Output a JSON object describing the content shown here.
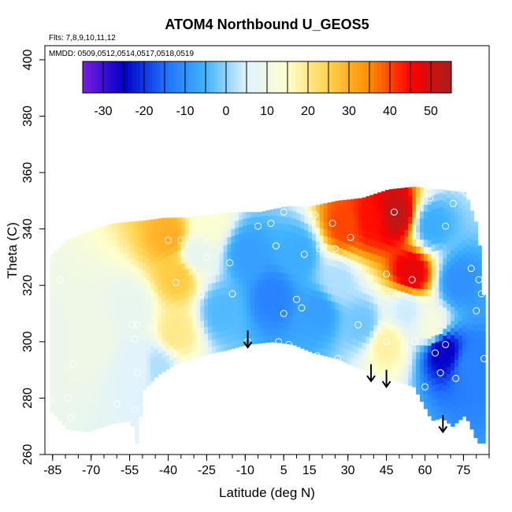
{
  "chart_data": {
    "type": "heatmap",
    "title": "ATOM4 Northbound U_GEOS5",
    "subtitle": "Flts: 7,8,9,10,11,12",
    "annotation": "MMDD: 0509,0512,0514,0517,0518,0519",
    "xlabel": "Latitude (deg N)",
    "ylabel": "Theta (C)",
    "xlim": [
      -88,
      85
    ],
    "ylim": [
      260,
      405
    ],
    "x_ticks": [
      -85,
      -70,
      -55,
      -40,
      -25,
      -10,
      5,
      15,
      30,
      45,
      60,
      75
    ],
    "x_tick_labels": [
      "-85",
      "-70",
      "-55",
      "-40",
      "-25",
      "-10",
      "5",
      "15",
      "30",
      "45",
      "60",
      "75"
    ],
    "y_ticks": [
      260,
      280,
      300,
      320,
      340,
      360,
      380,
      400
    ],
    "y_tick_labels": [
      "260",
      "280",
      "300",
      "320",
      "340",
      "360",
      "380",
      "400"
    ],
    "colorbar": {
      "range": [
        -35,
        55
      ],
      "ticks": [
        -30,
        -20,
        -10,
        0,
        10,
        20,
        30,
        40,
        50
      ],
      "tick_labels": [
        "-30",
        "-20",
        "-10",
        "0",
        "10",
        "20",
        "30",
        "40",
        "50"
      ],
      "colors": [
        "#7a1fe0",
        "#0000c8",
        "#1e6eff",
        "#41b4ff",
        "#dff2ff",
        "#ffffcc",
        "#ffd24a",
        "#ff8c00",
        "#ff0000",
        "#a81e1e"
      ]
    },
    "valid_region": {
      "top": [
        [
          -86,
          331
        ],
        [
          -80,
          336
        ],
        [
          -72,
          339
        ],
        [
          -62,
          342
        ],
        [
          -50,
          343
        ],
        [
          -42,
          344
        ],
        [
          -35,
          344
        ],
        [
          -25,
          345
        ],
        [
          -15,
          346
        ],
        [
          -5,
          346
        ],
        [
          5,
          348
        ],
        [
          15,
          348
        ],
        [
          25,
          350
        ],
        [
          35,
          351
        ],
        [
          45,
          354
        ],
        [
          55,
          355
        ],
        [
          65,
          354
        ],
        [
          75,
          353
        ],
        [
          80,
          340
        ],
        [
          83,
          305
        ]
      ],
      "bottom": [
        [
          -86,
          275
        ],
        [
          -80,
          269
        ],
        [
          -72,
          268
        ],
        [
          -62,
          271
        ],
        [
          -55,
          272
        ],
        [
          -53,
          264
        ],
        [
          -50,
          283
        ],
        [
          -45,
          288
        ],
        [
          -38,
          292
        ],
        [
          -28,
          295
        ],
        [
          -18,
          297
        ],
        [
          -10,
          299
        ],
        [
          0,
          300
        ],
        [
          8,
          299
        ],
        [
          16,
          296
        ],
        [
          25,
          294
        ],
        [
          35,
          290
        ],
        [
          45,
          287
        ],
        [
          55,
          284
        ],
        [
          62,
          272
        ],
        [
          66,
          273
        ],
        [
          70,
          270
        ],
        [
          75,
          274
        ],
        [
          80,
          264
        ],
        [
          83,
          264
        ]
      ]
    },
    "field": [
      {
        "lat": -86,
        "theta": 300,
        "u": 9
      },
      {
        "lat": -70,
        "theta": 300,
        "u": 10
      },
      {
        "lat": -55,
        "theta": 310,
        "u": 8
      },
      {
        "lat": -52,
        "theta": 290,
        "u": 6
      },
      {
        "lat": -45,
        "theta": 290,
        "u": 2
      },
      {
        "lat": -40,
        "theta": 336,
        "u": 30
      },
      {
        "lat": -37,
        "theta": 322,
        "u": 26
      },
      {
        "lat": -38,
        "theta": 302,
        "u": 20
      },
      {
        "lat": -30,
        "theta": 330,
        "u": 8
      },
      {
        "lat": -25,
        "theta": 342,
        "u": 14
      },
      {
        "lat": -20,
        "theta": 310,
        "u": -4
      },
      {
        "lat": -10,
        "theta": 330,
        "u": -8
      },
      {
        "lat": 0,
        "theta": 315,
        "u": -12
      },
      {
        "lat": 10,
        "theta": 330,
        "u": -6
      },
      {
        "lat": 18,
        "theta": 310,
        "u": -8
      },
      {
        "lat": 28,
        "theta": 340,
        "u": 40
      },
      {
        "lat": 38,
        "theta": 342,
        "u": 44
      },
      {
        "lat": 48,
        "theta": 344,
        "u": 52
      },
      {
        "lat": 54,
        "theta": 323,
        "u": 48
      },
      {
        "lat": 44,
        "theta": 298,
        "u": 18
      },
      {
        "lat": 52,
        "theta": 310,
        "u": 4
      },
      {
        "lat": 62,
        "theta": 340,
        "u": -6
      },
      {
        "lat": 66,
        "theta": 296,
        "u": -26
      },
      {
        "lat": 62,
        "theta": 304,
        "u": 12
      },
      {
        "lat": 72,
        "theta": 320,
        "u": -10
      },
      {
        "lat": 78,
        "theta": 290,
        "u": -12
      },
      {
        "lat": 35,
        "theta": 305,
        "u": -2
      },
      {
        "lat": 25,
        "theta": 320,
        "u": 2
      }
    ],
    "observations": [
      {
        "lat": -86,
        "theta": 329
      },
      {
        "lat": -82,
        "theta": 322
      },
      {
        "lat": -77,
        "theta": 292
      },
      {
        "lat": -79,
        "theta": 280
      },
      {
        "lat": -78,
        "theta": 273
      },
      {
        "lat": -86,
        "theta": 279
      },
      {
        "lat": -60,
        "theta": 278
      },
      {
        "lat": -53,
        "theta": 276
      },
      {
        "lat": -52,
        "theta": 289
      },
      {
        "lat": -53,
        "theta": 301
      },
      {
        "lat": -54,
        "theta": 306
      },
      {
        "lat": -52,
        "theta": 306
      },
      {
        "lat": -46,
        "theta": 305
      },
      {
        "lat": -40,
        "theta": 336
      },
      {
        "lat": -35,
        "theta": 336
      },
      {
        "lat": -37,
        "theta": 321
      },
      {
        "lat": -38,
        "theta": 296
      },
      {
        "lat": -27,
        "theta": 317
      },
      {
        "lat": -25,
        "theta": 330
      },
      {
        "lat": -22,
        "theta": 345
      },
      {
        "lat": -16,
        "theta": 328
      },
      {
        "lat": -15,
        "theta": 317
      },
      {
        "lat": -5,
        "theta": 341
      },
      {
        "lat": 0,
        "theta": 342
      },
      {
        "lat": 5,
        "theta": 346
      },
      {
        "lat": 2,
        "theta": 334
      },
      {
        "lat": -9,
        "theta": 300
      },
      {
        "lat": 3,
        "theta": 300
      },
      {
        "lat": 7,
        "theta": 299
      },
      {
        "lat": 5,
        "theta": 310
      },
      {
        "lat": 10,
        "theta": 315
      },
      {
        "lat": 12,
        "theta": 312
      },
      {
        "lat": 13,
        "theta": 331
      },
      {
        "lat": 17,
        "theta": 345
      },
      {
        "lat": 19,
        "theta": 333
      },
      {
        "lat": 24,
        "theta": 342
      },
      {
        "lat": 25,
        "theta": 333
      },
      {
        "lat": 31,
        "theta": 337
      },
      {
        "lat": 34,
        "theta": 306
      },
      {
        "lat": 26,
        "theta": 294
      },
      {
        "lat": 18,
        "theta": 295
      },
      {
        "lat": 45,
        "theta": 324
      },
      {
        "lat": 48,
        "theta": 346
      },
      {
        "lat": 55,
        "theta": 322
      },
      {
        "lat": 45,
        "theta": 300
      },
      {
        "lat": 52,
        "theta": 298
      },
      {
        "lat": 56,
        "theta": 300
      },
      {
        "lat": 60,
        "theta": 284
      },
      {
        "lat": 64,
        "theta": 296
      },
      {
        "lat": 66,
        "theta": 289
      },
      {
        "lat": 68,
        "theta": 299
      },
      {
        "lat": 72,
        "theta": 287
      },
      {
        "lat": 62,
        "theta": 351
      },
      {
        "lat": 71,
        "theta": 349
      },
      {
        "lat": 76,
        "theta": 353
      },
      {
        "lat": 78,
        "theta": 326
      },
      {
        "lat": 81,
        "theta": 322
      },
      {
        "lat": 80,
        "theta": 311
      },
      {
        "lat": 82,
        "theta": 317
      },
      {
        "lat": 85,
        "theta": 304
      },
      {
        "lat": 83,
        "theta": 294
      },
      {
        "lat": 68,
        "theta": 341
      }
    ],
    "arrows": [
      {
        "lat": -9,
        "theta_from": 304,
        "theta_to": 298
      },
      {
        "lat": 39,
        "theta_from": 292,
        "theta_to": 286
      },
      {
        "lat": 45,
        "theta_from": 290,
        "theta_to": 284
      },
      {
        "lat": 67,
        "theta_from": 274,
        "theta_to": 268
      }
    ]
  }
}
